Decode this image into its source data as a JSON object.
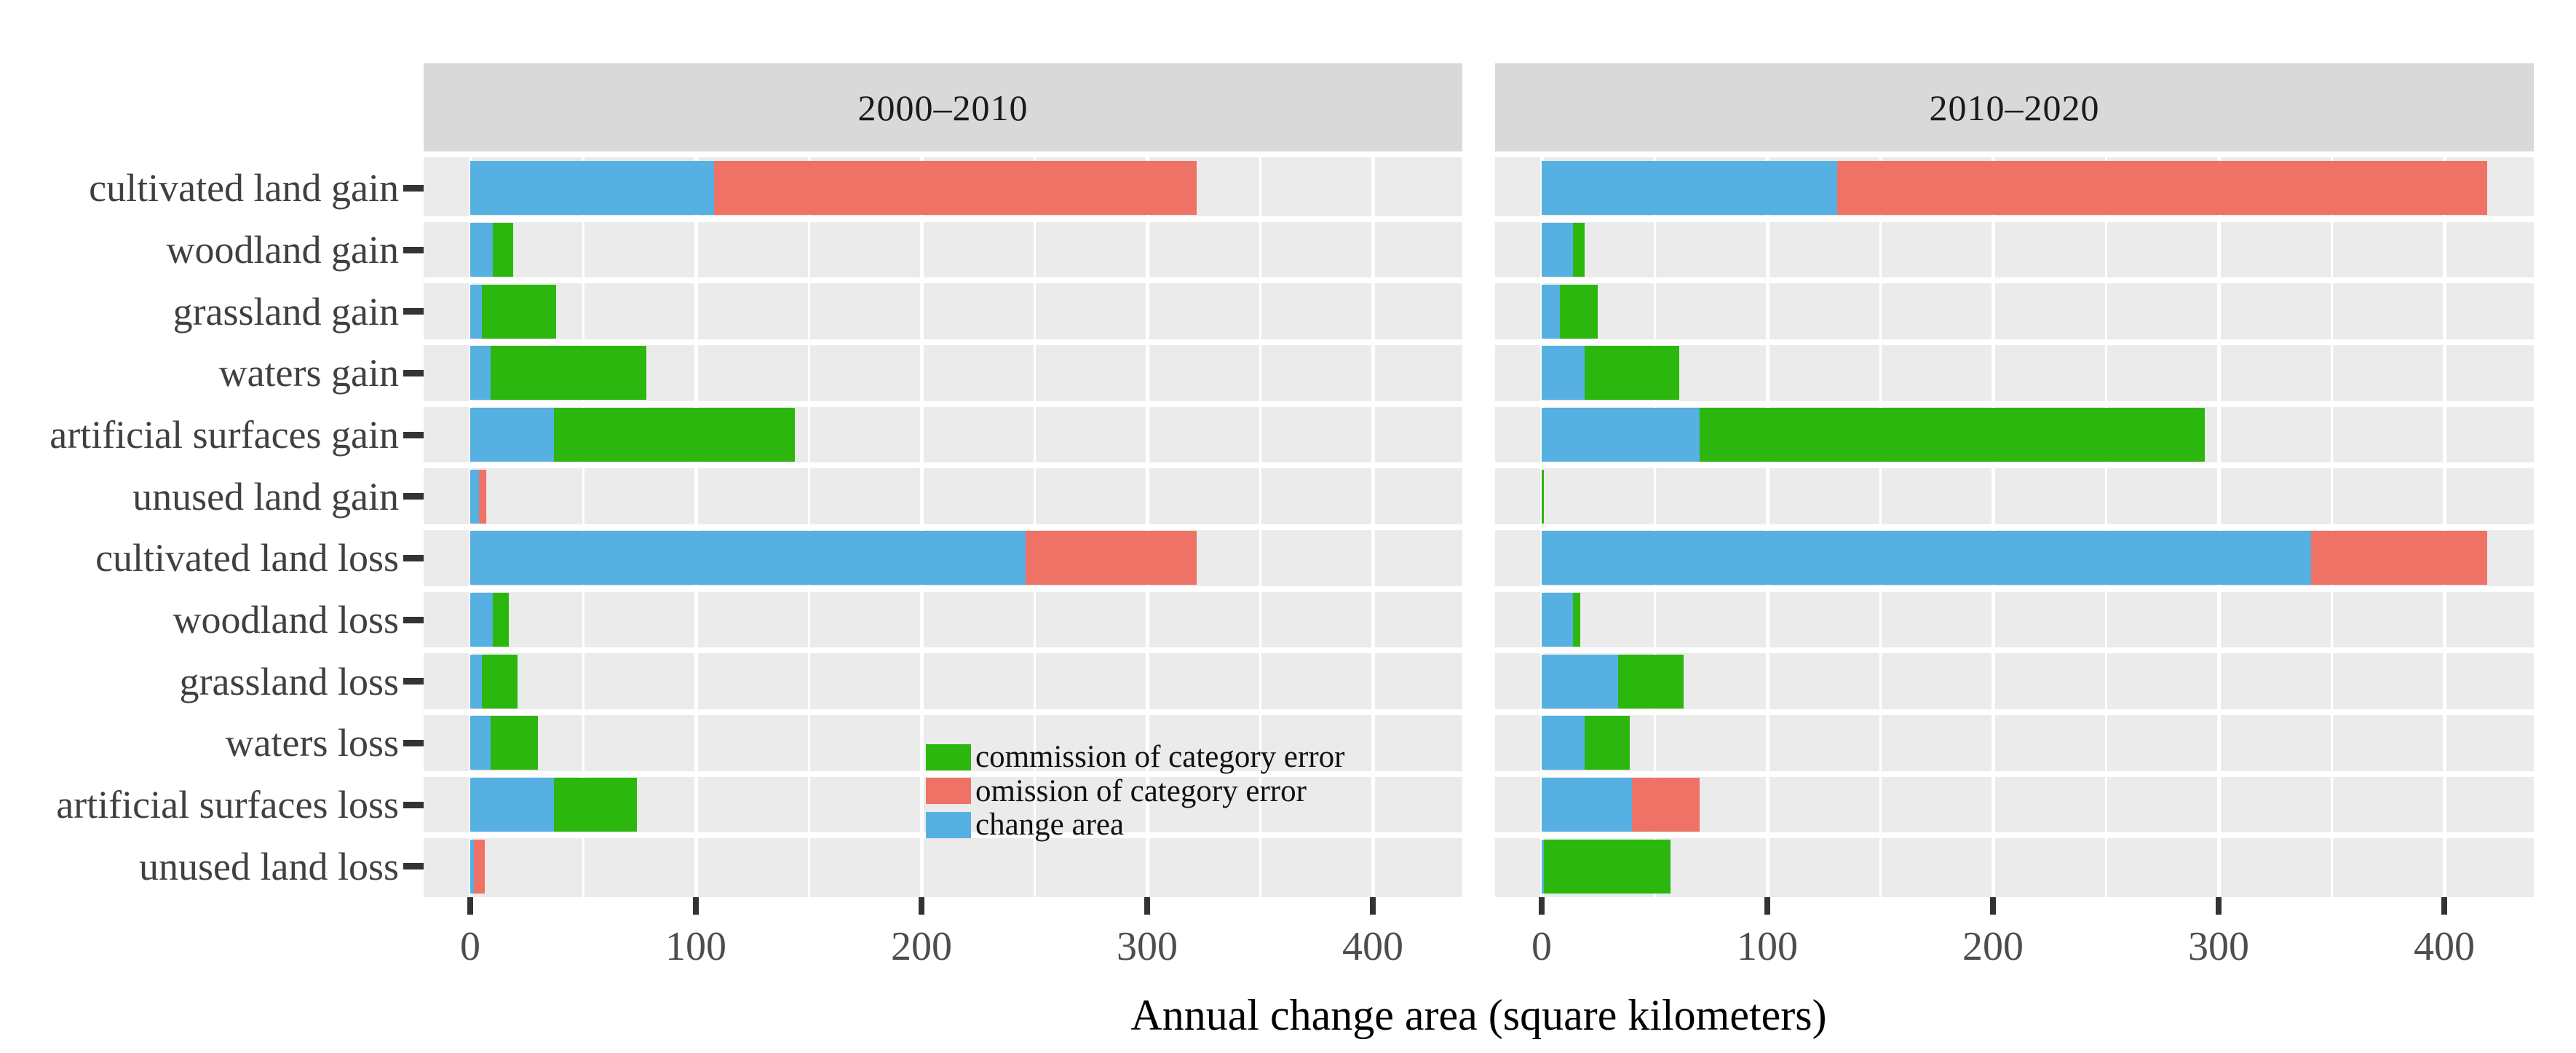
{
  "chart_data": {
    "type": "bar",
    "orientation": "horizontal",
    "stacked": true,
    "xlabel": "Annual change area (square kilometers)",
    "xticks": [
      0,
      100,
      200,
      300,
      400
    ],
    "xlim": [
      0,
      440
    ],
    "grid": "white vertical major (100) and minor (50) lines, white row separators, on grey panel",
    "legend_position": "inside left panel, lower middle",
    "categories": [
      "cultivated land gain",
      "woodland gain",
      "grassland gain",
      "waters gain",
      "artificial surfaces gain",
      "unused land gain",
      "cultivated land loss",
      "woodland loss",
      "grassland loss",
      "waters loss",
      "artificial surfaces loss",
      "unused land loss"
    ],
    "legend": [
      {
        "label": "commission of category error",
        "series": "commission"
      },
      {
        "label": "omission of category error",
        "series": "omission"
      },
      {
        "label": "change area",
        "series": "change"
      }
    ],
    "colors": {
      "commission": "#2bb70e",
      "omission": "#ee7265",
      "change": "#56b0e2",
      "panel_bg": "#ebebeb",
      "strip_bg": "#d9d9d9",
      "gridline": "#ffffff",
      "axis_text": "#404040",
      "tick_mark": "#333333"
    },
    "panels": [
      {
        "title": "2000–2010",
        "rows": [
          {
            "category": "cultivated land gain",
            "change": 108,
            "commission": 0,
            "omission": 214
          },
          {
            "category": "woodland gain",
            "change": 10,
            "commission": 9,
            "omission": 0
          },
          {
            "category": "grassland gain",
            "change": 5,
            "commission": 33,
            "omission": 0
          },
          {
            "category": "waters gain",
            "change": 9,
            "commission": 69,
            "omission": 0
          },
          {
            "category": "artificial surfaces gain",
            "change": 37,
            "commission": 107,
            "omission": 0
          },
          {
            "category": "unused land gain",
            "change": 4,
            "commission": 0,
            "omission": 3
          },
          {
            "category": "cultivated land loss",
            "change": 246,
            "commission": 0,
            "omission": 76
          },
          {
            "category": "woodland loss",
            "change": 10,
            "commission": 7,
            "omission": 0
          },
          {
            "category": "grassland loss",
            "change": 5,
            "commission": 16,
            "omission": 0
          },
          {
            "category": "waters loss",
            "change": 9,
            "commission": 21,
            "omission": 0
          },
          {
            "category": "artificial surfaces loss",
            "change": 37,
            "commission": 37,
            "omission": 0
          },
          {
            "category": "unused land loss",
            "change": 1.5,
            "commission": 0,
            "omission": 5
          }
        ]
      },
      {
        "title": "2010–2020",
        "rows": [
          {
            "category": "cultivated land gain",
            "change": 131,
            "commission": 0,
            "omission": 288
          },
          {
            "category": "woodland gain",
            "change": 14,
            "commission": 5,
            "omission": 0
          },
          {
            "category": "grassland gain",
            "change": 8,
            "commission": 17,
            "omission": 0
          },
          {
            "category": "waters gain",
            "change": 19,
            "commission": 42,
            "omission": 0
          },
          {
            "category": "artificial surfaces gain",
            "change": 70,
            "commission": 224,
            "omission": 0
          },
          {
            "category": "unused land gain",
            "change": 0,
            "commission": 1,
            "omission": 0
          },
          {
            "category": "cultivated land loss",
            "change": 341,
            "commission": 0,
            "omission": 78
          },
          {
            "category": "woodland loss",
            "change": 14,
            "commission": 3,
            "omission": 0
          },
          {
            "category": "grassland loss",
            "change": 34,
            "commission": 29,
            "omission": 0
          },
          {
            "category": "waters loss",
            "change": 19,
            "commission": 20,
            "omission": 0
          },
          {
            "category": "artificial surfaces loss",
            "change": 40,
            "commission": 0,
            "omission": 30
          },
          {
            "category": "unused land loss",
            "change": 1,
            "commission": 56,
            "omission": 0
          }
        ]
      }
    ]
  }
}
